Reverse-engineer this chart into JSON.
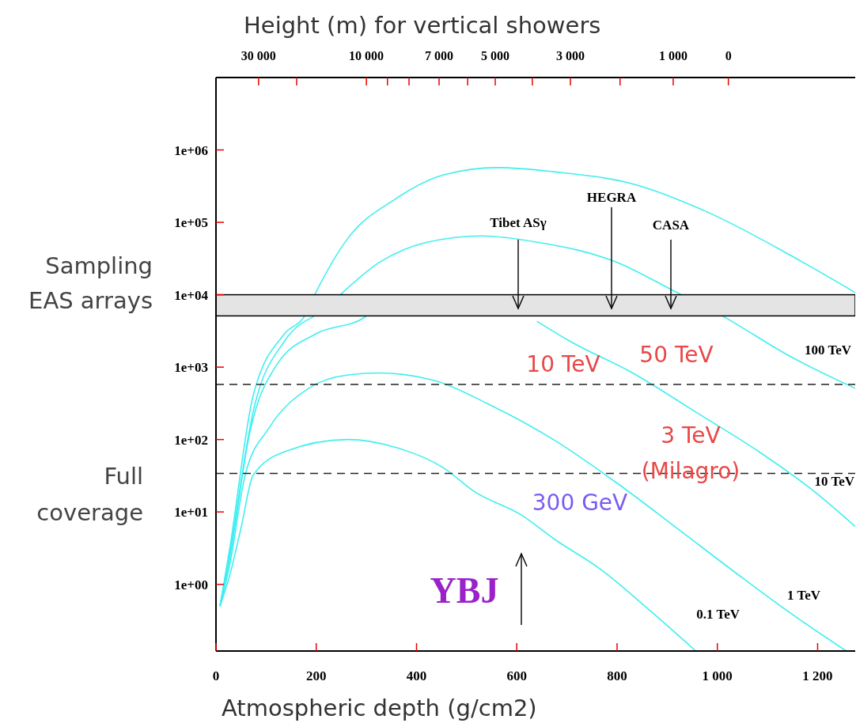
{
  "chart_data": {
    "type": "line",
    "xlabel": "Atmospheric depth (g/cm2)",
    "x2label": "Height (m) for vertical showers",
    "xlim": [
      0,
      1275
    ],
    "xticks": [
      0,
      200,
      400,
      600,
      800,
      {
        "value": 1000,
        "label": "1 000"
      },
      {
        "value": 1200,
        "label": "1 200"
      }
    ],
    "log": "y",
    "ylim": [
      0.12,
      10000000
    ],
    "yticks": [
      {
        "value": 1,
        "label": "1e+00"
      },
      {
        "value": 10,
        "label": "1e+01"
      },
      {
        "value": 100,
        "label": "1e+02"
      },
      {
        "value": 1000,
        "label": "1e+03"
      },
      {
        "value": 10000,
        "label": "1e+04"
      },
      {
        "value": 100000,
        "label": "1e+05"
      },
      {
        "value": 1000000,
        "label": "1e+06"
      }
    ],
    "grid": false,
    "legend": false,
    "marker": "none",
    "line_style": "solid",
    "series": [
      {
        "color": "#40eef0",
        "x": [
          8,
          27,
          74,
          137,
          177,
          197,
          263,
          358,
          453,
          563,
          673,
          831,
          989,
          1146,
          1275
        ],
        "values": [
          0.5,
          3,
          400,
          2900,
          5100,
          10000,
          60000,
          210000,
          450000,
          570000,
          500000,
          340000,
          130000,
          35000,
          10700
        ]
      },
      {
        "name": "100 TeV",
        "color": "#40eef0",
        "x": [
          8,
          27,
          74,
          137,
          195,
          220,
          248,
          326,
          421,
          531,
          642,
          800,
          910,
          1010,
          1146,
          1275
        ],
        "values": [
          0.5,
          2.6,
          240,
          2300,
          5000,
          null,
          10000,
          28000,
          53000,
          65000,
          53000,
          28000,
          11600,
          5100,
          1400,
          510
        ]
      },
      {
        "name": "10 TeV",
        "color": "#40eef0",
        "x": [
          8,
          27,
          66,
          121,
          200,
          295,
          300,
          450,
          640,
          705,
          831,
          957,
          1083,
          1194,
          1275
        ],
        "values": [
          0.5,
          2.2,
          112,
          1070,
          2900,
          4800,
          5100,
          null,
          4300,
          2300,
          830,
          240,
          68,
          19,
          6.3
        ]
      },
      {
        "name": "1 TeV",
        "color": "#40eef0",
        "x": [
          8,
          27,
          58,
          106,
          185,
          263,
          326,
          437,
          547,
          673,
          800,
          926,
          1052,
          1146,
          1257
        ],
        "values": [
          0.5,
          1.8,
          32,
          145,
          510,
          780,
          830,
          650,
          300,
          100,
          25,
          5.5,
          1.2,
          0.4,
          0.12
        ]
      },
      {
        "name": "0.1 TeV",
        "color": "#40eef0",
        "x": [
          8,
          27,
          50,
          74,
          137,
          263,
          358,
          453,
          516,
          610,
          673,
          768,
          863,
          957
        ],
        "values": [
          0.5,
          1.3,
          6,
          32,
          68,
          100,
          78,
          41,
          19,
          9,
          4.3,
          1.6,
          0.45,
          0.12
        ]
      }
    ],
    "bands": [
      {
        "axis": "y",
        "from": 5100,
        "to": 10000,
        "label": "Sampling\nEAS arrays",
        "color": "#e4e4e4"
      }
    ],
    "ref_lines": [
      {
        "axis": "y",
        "value": 575,
        "line_style": "dashed",
        "color": "#222222"
      },
      {
        "axis": "y",
        "value": 34,
        "line_style": "dashed",
        "color": "#222222"
      }
    ],
    "annotations": [
      "30 000",
      "10 000",
      "7 000",
      "5 000",
      "3 000",
      "1 000",
      "0",
      "Tibet ASγ",
      "HEGRA",
      "CASA",
      "10 TeV",
      "50 TeV",
      "3 TeV\n(Milagro)",
      "300 GeV",
      "YBJ",
      "Full\ncoverage"
    ]
  }
}
